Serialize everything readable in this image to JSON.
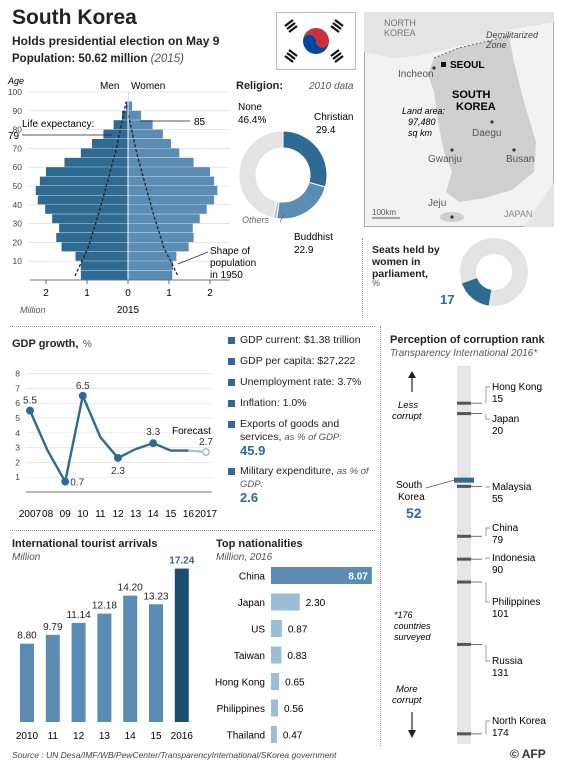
{
  "header": {
    "title": "South Korea",
    "subtitle": "Holds presidential election on May 9",
    "population_label": "Population: 50.62 million",
    "population_year": "(2015)"
  },
  "colors": {
    "dark": "#2f6a92",
    "mid": "#5b8db4",
    "light": "#9bbdd6",
    "grey": "#e3e3e3",
    "flag_red": "#cd2e3a",
    "flag_blue": "#0047a0"
  },
  "pyramid": {
    "age_label": "Age",
    "men_label": "Men",
    "women_label": "Women",
    "life_exp_label": "Life expectancy:",
    "life_exp_men": "79",
    "life_exp_women": "85",
    "shape_note": "Shape of population in 1950",
    "x_unit": "Million",
    "x_year": "2015"
  },
  "religion": {
    "title": "Religion:",
    "year_note": "2010 data",
    "others_label": "Others",
    "none_label": "None",
    "none_value": "46.4%",
    "christian_label": "Christian",
    "christian_value": "29.4",
    "buddhist_label": "Buddhist",
    "buddhist_value": "22.9"
  },
  "map": {
    "north_korea": "NORTH KOREA",
    "dmz": "Demilitarized Zone",
    "seoul": "SEOUL",
    "incheon": "Incheon",
    "south_korea": "SOUTH KOREA",
    "land_area": "Land area: 97,480 sq km",
    "daegu": "Daegu",
    "gwangju": "Gwanju",
    "busan": "Busan",
    "jeju": "Jeju",
    "japan": "JAPAN",
    "scale": "100km"
  },
  "women_parliament": {
    "title": "Seats held by women in parliament,",
    "unit": "%",
    "value_label": "17"
  },
  "gdp": {
    "title": "GDP growth,",
    "unit": "%",
    "forecast_label": "Forecast",
    "facts": {
      "current": "GDP current: $1.38 trillion",
      "per_capita": "GDP per capita: $27,222",
      "unemployment": "Unemployment rate: 3.7%",
      "inflation": "Inflation: 1.0%",
      "exports_label": "Exports of goods and services,",
      "exports_sub": "as % of GDP:",
      "exports_value": "45.9",
      "military_label": "Military expenditure,",
      "military_sub": "as % of GDP:",
      "military_value": "2.6"
    }
  },
  "tourists": {
    "title": "International tourist arrivals",
    "unit": "Million"
  },
  "nationalities": {
    "title": "Top nationalities",
    "unit": "Million, 2016"
  },
  "corruption": {
    "title": "Perception of corruption rank",
    "source": "Transparency International 2016*",
    "less": "Less corrupt",
    "more": "More corrupt",
    "note": "*176 countries surveyed",
    "sk_name": "South Korea",
    "sk_rank": "52"
  },
  "footer": {
    "source": "Source : UN Desa/IMF/WB/PewCenter/TransparencyInternational/SKorea government",
    "logo": "AFP"
  },
  "chart_data": [
    {
      "type": "bar",
      "name": "population-pyramid",
      "categories": [
        "0-4",
        "5-9",
        "10-14",
        "15-19",
        "20-24",
        "25-29",
        "30-34",
        "35-39",
        "40-44",
        "45-49",
        "50-54",
        "55-59",
        "60-64",
        "65-69",
        "70-74",
        "75-79",
        "80-84",
        "85-89",
        "90-94",
        "95-99"
      ],
      "series": [
        {
          "name": "Men",
          "values": [
            1.15,
            1.15,
            1.28,
            1.62,
            1.75,
            1.68,
            1.85,
            2.02,
            2.2,
            2.25,
            2.15,
            2.0,
            1.55,
            1.15,
            0.88,
            0.6,
            0.35,
            0.15,
            0.05,
            0.01
          ]
        },
        {
          "name": "Women",
          "values": [
            1.08,
            1.1,
            1.18,
            1.48,
            1.6,
            1.58,
            1.75,
            1.92,
            2.1,
            2.18,
            2.1,
            2.0,
            1.6,
            1.25,
            1.05,
            0.85,
            0.6,
            0.32,
            0.1,
            0.02
          ]
        }
      ],
      "title": "",
      "xlabel": "Million",
      "ylabel": "Age",
      "xticks": [
        "2",
        "1",
        "0",
        "1",
        "2"
      ],
      "yticks": [
        10,
        20,
        30,
        40,
        50,
        60,
        70,
        80,
        90,
        100
      ],
      "xlim": [
        -2.5,
        2.5
      ],
      "ylim": [
        0,
        100
      ]
    },
    {
      "type": "pie",
      "name": "religion",
      "labels": [
        "Christian",
        "Buddhist",
        "Others",
        "None"
      ],
      "values": [
        29.4,
        22.9,
        1.3,
        46.4
      ]
    },
    {
      "type": "pie",
      "name": "women-in-parliament",
      "labels": [
        "Women",
        "Men"
      ],
      "values": [
        17,
        83
      ]
    },
    {
      "type": "line",
      "name": "gdp-growth",
      "x": [
        "2007",
        "08",
        "09",
        "10",
        "11",
        "12",
        "13",
        "14",
        "15",
        "16",
        "2017"
      ],
      "values": [
        5.5,
        2.8,
        0.7,
        6.5,
        3.7,
        2.3,
        2.9,
        3.3,
        2.8,
        2.8,
        2.7
      ],
      "forecast_from_index": 9,
      "point_labels": {
        "0": "5.5",
        "2": "0.7",
        "3": "6.5",
        "5": "2.3",
        "7": "3.3",
        "10": "2.7"
      },
      "yticks": [
        1,
        2,
        3,
        4,
        5,
        6,
        7,
        8
      ],
      "ylim": [
        0,
        8
      ]
    },
    {
      "type": "bar",
      "name": "tourist-arrivals",
      "categories": [
        "2010",
        "11",
        "12",
        "13",
        "14",
        "15",
        "2016"
      ],
      "values": [
        8.8,
        9.79,
        11.14,
        12.18,
        14.2,
        13.23,
        17.24
      ],
      "value_labels": [
        "8.80",
        "9.79",
        "11.14",
        "12.18",
        "14.20",
        "13.23",
        "17.24"
      ]
    },
    {
      "type": "bar",
      "name": "top-nationalities",
      "categories": [
        "China",
        "Japan",
        "US",
        "Taiwan",
        "Hong Kong",
        "Philippines",
        "Thailand"
      ],
      "values": [
        8.07,
        2.3,
        0.87,
        0.83,
        0.65,
        0.56,
        0.47
      ],
      "value_labels": [
        "8.07",
        "2.30",
        "0.87",
        "0.83",
        "0.65",
        "0.56",
        "0.47"
      ]
    },
    {
      "type": "scatter",
      "name": "corruption-rank",
      "ylim": [
        0,
        176
      ],
      "countries": [
        {
          "name": "Hong Kong",
          "rank": 15,
          "label": "15"
        },
        {
          "name": "Japan",
          "rank": 20,
          "label": "20"
        },
        {
          "name": "Malaysia",
          "rank": 55,
          "label": "55"
        },
        {
          "name": "China",
          "rank": 79,
          "label": "79"
        },
        {
          "name": "Indonesia",
          "rank": 90,
          "label": "90"
        },
        {
          "name": "Philippines",
          "rank": 101,
          "label": "101"
        },
        {
          "name": "Russia",
          "rank": 131,
          "label": "131"
        },
        {
          "name": "North Korea",
          "rank": 174,
          "label": "174"
        }
      ],
      "highlight": {
        "name": "South Korea",
        "rank": 52
      }
    }
  ]
}
